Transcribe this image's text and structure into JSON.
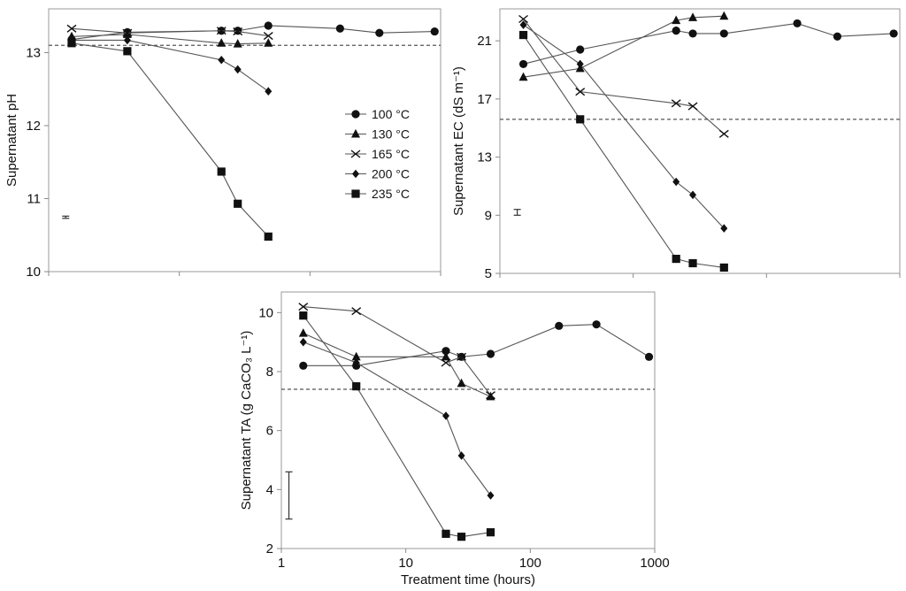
{
  "chart_data": [
    {
      "id": "ph",
      "type": "line",
      "title": "",
      "xlabel": "",
      "ylabel": "Supernatant pH",
      "xscale": "log",
      "xlim": [
        1,
        1000
      ],
      "ylim": [
        10,
        13.6
      ],
      "yticks": [
        10,
        11,
        12,
        13
      ],
      "x_tick_labels": [],
      "threshold": 13.1,
      "error_bar": {
        "x": 1.35,
        "low": 10.73,
        "high": 10.76
      },
      "legend": {
        "position": "center-right",
        "entries": [
          {
            "name": "100 °C",
            "marker": "circle"
          },
          {
            "name": "130 °C",
            "marker": "triangle"
          },
          {
            "name": "165 °C",
            "marker": "cross"
          },
          {
            "name": "200 °C",
            "marker": "diamond"
          },
          {
            "name": "235 °C",
            "marker": "square"
          }
        ]
      },
      "series": [
        {
          "name": "100 °C",
          "marker": "circle",
          "points": [
            [
              1.5,
              13.18
            ],
            [
              4,
              13.28
            ],
            [
              21,
              13.3
            ],
            [
              28,
              13.3
            ],
            [
              48,
              13.37
            ],
            [
              170,
              13.33
            ],
            [
              340,
              13.27
            ],
            [
              900,
              13.29
            ]
          ]
        },
        {
          "name": "130 °C",
          "marker": "triangle",
          "points": [
            [
              1.5,
              13.22
            ],
            [
              4,
              13.25
            ],
            [
              21,
              13.13
            ],
            [
              28,
              13.12
            ],
            [
              48,
              13.13
            ]
          ]
        },
        {
          "name": "165 °C",
          "marker": "cross",
          "points": [
            [
              1.5,
              13.33
            ],
            [
              4,
              13.27
            ],
            [
              21,
              13.3
            ],
            [
              28,
              13.29
            ],
            [
              48,
              13.23
            ]
          ]
        },
        {
          "name": "200 °C",
          "marker": "diamond",
          "points": [
            [
              1.5,
              13.17
            ],
            [
              4,
              13.17
            ],
            [
              21,
              12.9
            ],
            [
              28,
              12.77
            ],
            [
              48,
              12.47
            ]
          ]
        },
        {
          "name": "235 °C",
          "marker": "square",
          "points": [
            [
              1.5,
              13.13
            ],
            [
              4,
              13.02
            ],
            [
              21,
              11.37
            ],
            [
              28,
              10.93
            ],
            [
              48,
              10.48
            ]
          ]
        }
      ]
    },
    {
      "id": "ec",
      "type": "line",
      "title": "",
      "xlabel": "",
      "ylabel": "Supernatant EC (dS m⁻¹)",
      "xscale": "log",
      "xlim": [
        1,
        1000
      ],
      "ylim": [
        5,
        23.2
      ],
      "yticks": [
        5,
        9,
        13,
        17,
        21
      ],
      "x_tick_labels": [],
      "threshold": 15.6,
      "error_bar": {
        "x": 1.35,
        "low": 9.0,
        "high": 9.4
      },
      "series": [
        {
          "name": "100 °C",
          "marker": "circle",
          "points": [
            [
              1.5,
              19.4
            ],
            [
              4,
              20.4
            ],
            [
              21,
              21.7
            ],
            [
              28,
              21.5
            ],
            [
              48,
              21.5
            ],
            [
              170,
              22.2
            ],
            [
              340,
              21.3
            ],
            [
              900,
              21.5
            ]
          ]
        },
        {
          "name": "130 °C",
          "marker": "triangle",
          "points": [
            [
              1.5,
              18.5
            ],
            [
              4,
              19.1
            ],
            [
              21,
              22.4
            ],
            [
              28,
              22.6
            ],
            [
              48,
              22.7
            ]
          ]
        },
        {
          "name": "165 °C",
          "marker": "cross",
          "points": [
            [
              1.5,
              22.5
            ],
            [
              4,
              17.5
            ],
            [
              21,
              16.7
            ],
            [
              28,
              16.5
            ],
            [
              48,
              14.6
            ]
          ]
        },
        {
          "name": "200 °C",
          "marker": "diamond",
          "points": [
            [
              1.5,
              22.1
            ],
            [
              4,
              19.4
            ],
            [
              21,
              11.3
            ],
            [
              28,
              10.4
            ],
            [
              48,
              8.1
            ]
          ]
        },
        {
          "name": "235 °C",
          "marker": "square",
          "points": [
            [
              1.5,
              21.4
            ],
            [
              4,
              15.6
            ],
            [
              21,
              6.0
            ],
            [
              28,
              5.7
            ],
            [
              48,
              5.4
            ]
          ]
        }
      ]
    },
    {
      "id": "ta",
      "type": "line",
      "title": "",
      "xlabel": "Treatment time (hours)",
      "ylabel": "Supernatant TA (g CaCO₃ L⁻¹)",
      "xscale": "log",
      "xlim": [
        1,
        1000
      ],
      "ylim": [
        2,
        10.7
      ],
      "yticks": [
        2,
        4,
        6,
        8,
        10
      ],
      "x_tick_labels": [
        "1",
        "10",
        "100",
        "1000"
      ],
      "threshold": 7.4,
      "error_bar": {
        "x": 1.15,
        "low": 3.0,
        "high": 4.6
      },
      "series": [
        {
          "name": "100 °C",
          "marker": "circle",
          "points": [
            [
              1.5,
              8.2
            ],
            [
              4,
              8.2
            ],
            [
              21,
              8.7
            ],
            [
              28,
              8.5
            ],
            [
              48,
              8.6
            ],
            [
              170,
              9.55
            ],
            [
              340,
              9.6
            ],
            [
              900,
              8.5
            ]
          ]
        },
        {
          "name": "130 °C",
          "marker": "triangle",
          "points": [
            [
              1.5,
              9.3
            ],
            [
              4,
              8.5
            ],
            [
              21,
              8.5
            ],
            [
              28,
              7.6
            ],
            [
              48,
              7.15
            ]
          ]
        },
        {
          "name": "165 °C",
          "marker": "cross",
          "points": [
            [
              1.5,
              10.2
            ],
            [
              4,
              10.05
            ],
            [
              21,
              8.3
            ],
            [
              28,
              8.5
            ],
            [
              48,
              7.2
            ]
          ]
        },
        {
          "name": "200 °C",
          "marker": "diamond",
          "points": [
            [
              1.5,
              9.0
            ],
            [
              4,
              8.3
            ],
            [
              21,
              6.5
            ],
            [
              28,
              5.15
            ],
            [
              48,
              3.8
            ]
          ]
        },
        {
          "name": "235 °C",
          "marker": "square",
          "points": [
            [
              1.5,
              9.9
            ],
            [
              4,
              7.5
            ],
            [
              21,
              2.5
            ],
            [
              28,
              2.4
            ],
            [
              48,
              2.55
            ]
          ]
        }
      ]
    }
  ]
}
